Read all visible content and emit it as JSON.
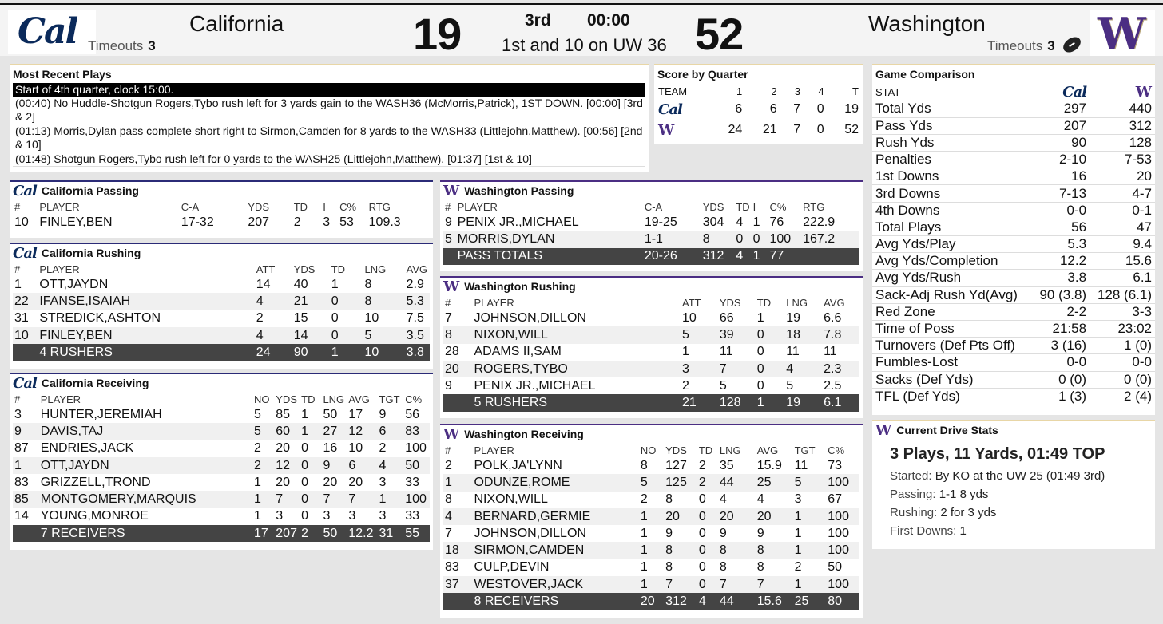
{
  "scoreboard": {
    "home_name": "California",
    "home_score": "19",
    "home_timeouts_label": "Timeouts",
    "home_timeouts": "3",
    "away_name": "Washington",
    "away_score": "52",
    "away_timeouts_label": "Timeouts",
    "away_timeouts": "3",
    "quarter": "3rd",
    "clock": "00:00",
    "down_distance": "1st and 10 on UW 36",
    "cal_logo": "Cal",
    "uw_logo": "W"
  },
  "recent_plays": {
    "title": "Most Recent Plays",
    "items": [
      "Start of 4th quarter, clock 15:00.",
      "(00:40) No Huddle-Shotgun Rogers,Tybo rush left for 3 yards gain to the WASH36 (McMorris,Patrick), 1ST DOWN. [00:00] [3rd & 2]",
      "(01:13) Morris,Dylan pass complete short right to Sirmon,Camden for 8 yards to the WASH33 (Littlejohn,Matthew). [00:56] [2nd & 10]",
      "(01:48) Shotgun Rogers,Tybo rush left for 0 yards to the WASH25 (Littlejohn,Matthew). [01:37] [1st & 10]"
    ]
  },
  "score_by_quarter": {
    "title": "Score by Quarter",
    "headers": [
      "TEAM",
      "1",
      "2",
      "3",
      "4",
      "T"
    ],
    "rows": [
      {
        "team": "Cal",
        "q": [
          "6",
          "6",
          "7",
          "0",
          "19"
        ]
      },
      {
        "team": "W",
        "q": [
          "24",
          "21",
          "7",
          "0",
          "52"
        ]
      }
    ]
  },
  "comparison": {
    "title": "Game Comparison",
    "stat_header": "STAT",
    "cal_header": "Cal",
    "uw_header": "W",
    "rows": [
      [
        "Total Yds",
        "297",
        "440"
      ],
      [
        "Pass Yds",
        "207",
        "312"
      ],
      [
        "Rush Yds",
        "90",
        "128"
      ],
      [
        "Penalties",
        "2-10",
        "7-53"
      ],
      [
        "1st Downs",
        "16",
        "20"
      ],
      [
        "3rd Downs",
        "7-13",
        "4-7"
      ],
      [
        "4th Downs",
        "0-0",
        "0-1"
      ],
      [
        "Total Plays",
        "56",
        "47"
      ],
      [
        "Avg Yds/Play",
        "5.3",
        "9.4"
      ],
      [
        "Avg Yds/Completion",
        "12.2",
        "15.6"
      ],
      [
        "Avg Yds/Rush",
        "3.8",
        "6.1"
      ],
      [
        "Sack-Adj Rush Yd(Avg)",
        "90 (3.8)",
        "128 (6.1)"
      ],
      [
        "Red Zone",
        "2-2",
        "3-3"
      ],
      [
        "Time of Poss",
        "21:58",
        "23:02"
      ],
      [
        "Turnovers (Def Pts Off)",
        "3 (16)",
        "1 (0)"
      ],
      [
        "Fumbles-Lost",
        "0-0",
        "0-0"
      ],
      [
        "Sacks (Def Yds)",
        "0 (0)",
        "0 (0)"
      ],
      [
        "TFL (Def Yds)",
        "1 (3)",
        "2 (4)"
      ]
    ]
  },
  "drive": {
    "title": "Current Drive Stats",
    "headline": "3 Plays, 11 Yards, 01:49 TOP",
    "lines": [
      {
        "k": "Started:",
        "v": "By KO at the UW 25 (01:49 3rd)"
      },
      {
        "k": "Passing:",
        "v": "1-1 8 yds"
      },
      {
        "k": "Rushing:",
        "v": "2 for 3 yds"
      },
      {
        "k": "First Downs:",
        "v": "1"
      }
    ]
  },
  "cal_passing": {
    "title": "California Passing",
    "headers": [
      "#",
      "PLAYER",
      "C-A",
      "YDS",
      "TD",
      "I",
      "C%",
      "RTG"
    ],
    "rows": [
      [
        "10",
        "FINLEY,BEN",
        "17-32",
        "207",
        "2",
        "3",
        "53",
        "109.3"
      ]
    ]
  },
  "cal_rushing": {
    "title": "California Rushing",
    "headers": [
      "#",
      "PLAYER",
      "ATT",
      "YDS",
      "TD",
      "LNG",
      "AVG"
    ],
    "rows": [
      [
        "1",
        "OTT,JAYDN",
        "14",
        "40",
        "1",
        "8",
        "2.9"
      ],
      [
        "22",
        "IFANSE,ISAIAH",
        "4",
        "21",
        "0",
        "8",
        "5.3"
      ],
      [
        "31",
        "STREDICK,ASHTON",
        "2",
        "15",
        "0",
        "10",
        "7.5"
      ],
      [
        "10",
        "FINLEY,BEN",
        "4",
        "14",
        "0",
        "5",
        "3.5"
      ]
    ],
    "total": [
      "",
      "4 RUSHERS",
      "24",
      "90",
      "1",
      "10",
      "3.8"
    ]
  },
  "cal_receiving": {
    "title": "California Receiving",
    "headers": [
      "#",
      "PLAYER",
      "NO",
      "YDS",
      "TD",
      "LNG",
      "AVG",
      "TGT",
      "C%"
    ],
    "rows": [
      [
        "3",
        "HUNTER,JEREMIAH",
        "5",
        "85",
        "1",
        "50",
        "17",
        "9",
        "56"
      ],
      [
        "9",
        "DAVIS,TAJ",
        "5",
        "60",
        "1",
        "27",
        "12",
        "6",
        "83"
      ],
      [
        "87",
        "ENDRIES,JACK",
        "2",
        "20",
        "0",
        "16",
        "10",
        "2",
        "100"
      ],
      [
        "1",
        "OTT,JAYDN",
        "2",
        "12",
        "0",
        "9",
        "6",
        "4",
        "50"
      ],
      [
        "83",
        "GRIZZELL,TROND",
        "1",
        "20",
        "0",
        "20",
        "20",
        "3",
        "33"
      ],
      [
        "85",
        "MONTGOMERY,MARQUIS",
        "1",
        "7",
        "0",
        "7",
        "7",
        "1",
        "100"
      ],
      [
        "14",
        "YOUNG,MONROE",
        "1",
        "3",
        "0",
        "3",
        "3",
        "3",
        "33"
      ]
    ],
    "total": [
      "",
      "7 RECEIVERS",
      "17",
      "207",
      "2",
      "50",
      "12.2",
      "31",
      "55"
    ]
  },
  "uw_passing": {
    "title": "Washington Passing",
    "headers": [
      "#",
      "PLAYER",
      "C-A",
      "YDS",
      "TD",
      "I",
      "C%",
      "RTG"
    ],
    "rows": [
      [
        "9",
        "PENIX JR.,MICHAEL",
        "19-25",
        "304",
        "4",
        "1",
        "76",
        "222.9"
      ],
      [
        "5",
        "MORRIS,DYLAN",
        "1-1",
        "8",
        "0",
        "0",
        "100",
        "167.2"
      ]
    ],
    "total": [
      "",
      "PASS TOTALS",
      "20-26",
      "312",
      "4",
      "1",
      "77",
      ""
    ]
  },
  "uw_rushing": {
    "title": "Washington Rushing",
    "headers": [
      "#",
      "PLAYER",
      "ATT",
      "YDS",
      "TD",
      "LNG",
      "AVG"
    ],
    "rows": [
      [
        "7",
        "JOHNSON,DILLON",
        "10",
        "66",
        "1",
        "19",
        "6.6"
      ],
      [
        "8",
        "NIXON,WILL",
        "5",
        "39",
        "0",
        "18",
        "7.8"
      ],
      [
        "28",
        "ADAMS II,SAM",
        "1",
        "11",
        "0",
        "11",
        "11"
      ],
      [
        "20",
        "ROGERS,TYBO",
        "3",
        "7",
        "0",
        "4",
        "2.3"
      ],
      [
        "9",
        "PENIX JR.,MICHAEL",
        "2",
        "5",
        "0",
        "5",
        "2.5"
      ]
    ],
    "total": [
      "",
      "5 RUSHERS",
      "21",
      "128",
      "1",
      "19",
      "6.1"
    ]
  },
  "uw_receiving": {
    "title": "Washington Receiving",
    "headers": [
      "#",
      "PLAYER",
      "NO",
      "YDS",
      "TD",
      "LNG",
      "AVG",
      "TGT",
      "C%"
    ],
    "rows": [
      [
        "2",
        "POLK,JA'LYNN",
        "8",
        "127",
        "2",
        "35",
        "15.9",
        "11",
        "73"
      ],
      [
        "1",
        "ODUNZE,ROME",
        "5",
        "125",
        "2",
        "44",
        "25",
        "5",
        "100"
      ],
      [
        "8",
        "NIXON,WILL",
        "2",
        "8",
        "0",
        "4",
        "4",
        "3",
        "67"
      ],
      [
        "4",
        "BERNARD,GERMIE",
        "1",
        "20",
        "0",
        "20",
        "20",
        "1",
        "100"
      ],
      [
        "7",
        "JOHNSON,DILLON",
        "1",
        "9",
        "0",
        "9",
        "9",
        "1",
        "100"
      ],
      [
        "18",
        "SIRMON,CAMDEN",
        "1",
        "8",
        "0",
        "8",
        "8",
        "1",
        "100"
      ],
      [
        "83",
        "CULP,DEVIN",
        "1",
        "8",
        "0",
        "8",
        "8",
        "2",
        "50"
      ],
      [
        "37",
        "WESTOVER,JACK",
        "1",
        "7",
        "0",
        "7",
        "7",
        "1",
        "100"
      ]
    ],
    "total": [
      "",
      "8 RECEIVERS",
      "20",
      "312",
      "4",
      "44",
      "15.6",
      "25",
      "80"
    ]
  }
}
